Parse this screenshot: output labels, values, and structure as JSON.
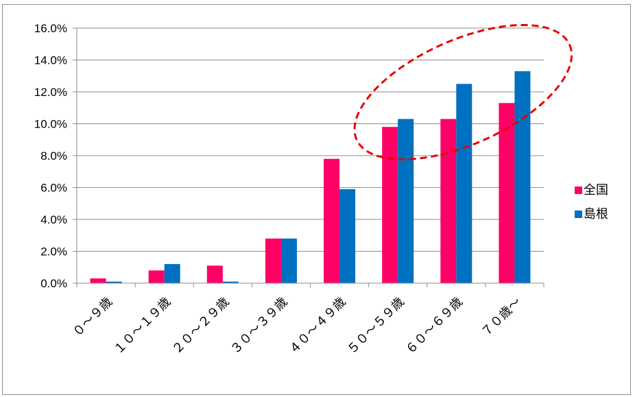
{
  "chart_data": {
    "type": "bar",
    "categories": [
      "０～９歳",
      "１０～１９歳",
      "２０～２９歳",
      "３０～３９歳",
      "４０～４９歳",
      "５０～５９歳",
      "６０～６９歳",
      "７０歳～"
    ],
    "series": [
      {
        "name": "全国",
        "color": "#ff0066",
        "values": [
          0.3,
          0.8,
          1.1,
          2.8,
          7.8,
          9.8,
          10.3,
          11.3
        ]
      },
      {
        "name": "島根",
        "color": "#0070c0",
        "values": [
          0.1,
          1.2,
          0.1,
          2.8,
          5.9,
          10.3,
          12.5,
          13.3
        ]
      }
    ],
    "yticks": [
      "0.0%",
      "2.0%",
      "4.0%",
      "6.0%",
      "8.0%",
      "10.0%",
      "12.0%",
      "14.0%",
      "16.0%"
    ],
    "ylim": [
      0,
      16
    ],
    "grid": true,
    "legend_position": "right",
    "annotation": {
      "shape": "dashed-ellipse",
      "color": "#e60000",
      "highlights": [
        "５０～５９歳",
        "６０～６９歳",
        "７０歳～"
      ]
    }
  }
}
